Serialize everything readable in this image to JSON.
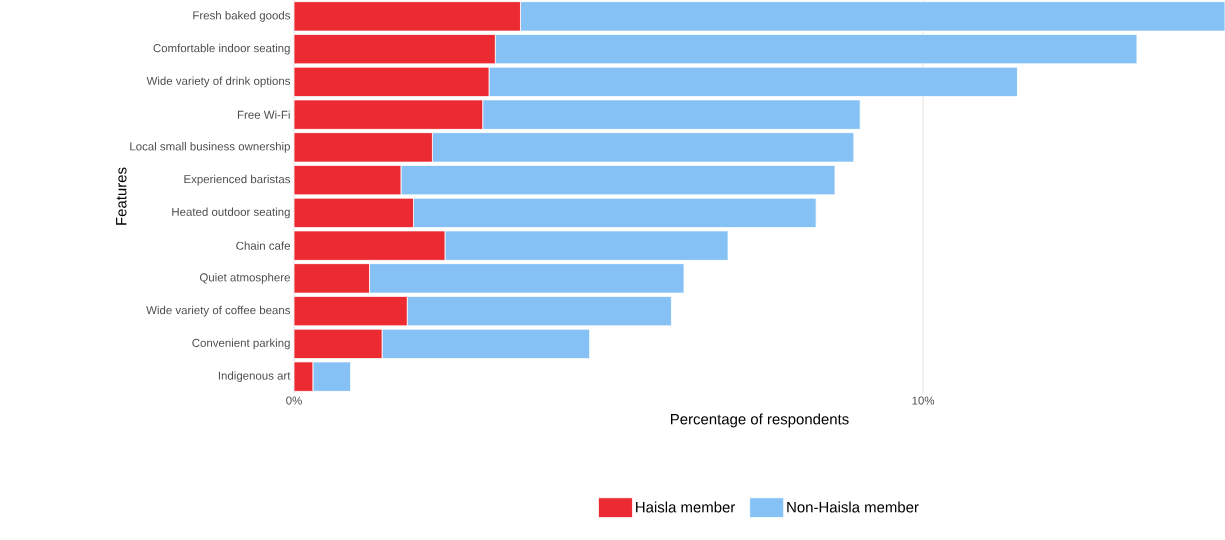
{
  "chart_data": {
    "type": "bar",
    "orientation": "horizontal",
    "stacked": true,
    "xlabel": "Percentage of respondents",
    "ylabel": "Features",
    "categories": [
      "Fresh baked goods",
      "Comfortable indoor seating",
      "Wide variety of drink options",
      "Free Wi-Fi",
      "Local small business ownership",
      "Experienced baristas",
      "Heated outdoor seating",
      "Chain cafe",
      "Quiet atmosphere",
      "Wide variety of coffee beans",
      "Convenient parking",
      "Indigenous art"
    ],
    "series": [
      {
        "name": "Haisla member",
        "color": "#eb2a31",
        "values": [
          3.6,
          3.2,
          3.1,
          3.0,
          2.2,
          1.7,
          1.9,
          2.4,
          1.2,
          1.8,
          1.4,
          0.3
        ]
      },
      {
        "name": "Non-Haisla member",
        "color": "#85c1f5",
        "values": [
          11.2,
          10.2,
          8.4,
          6.0,
          6.7,
          6.9,
          6.4,
          4.5,
          5.0,
          4.2,
          3.3,
          0.6
        ]
      }
    ],
    "xlim": [
      0,
      14.8
    ],
    "xticks": [
      {
        "value": 0,
        "label": "0%"
      },
      {
        "value": 10,
        "label": "10%"
      }
    ],
    "grid": "x",
    "legend": "bottom"
  }
}
